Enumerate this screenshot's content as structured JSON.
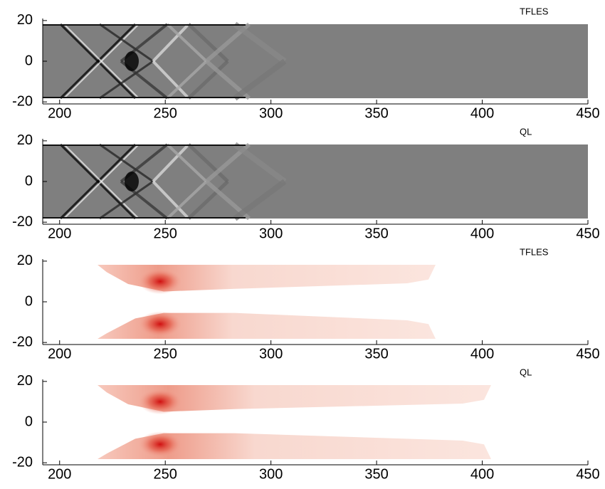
{
  "chart_data": [
    {
      "type": "image",
      "label": "TFLES",
      "colormap": "gray",
      "xlim": [
        192,
        450
      ],
      "ylim": [
        -21,
        21
      ],
      "xticks": [
        200,
        250,
        300,
        350,
        400,
        450
      ],
      "yticks": [
        -20,
        0,
        20
      ]
    },
    {
      "type": "image",
      "label": "QL",
      "colormap": "gray",
      "xlim": [
        192,
        450
      ],
      "ylim": [
        -21,
        21
      ],
      "xticks": [
        200,
        250,
        300,
        350,
        400,
        450
      ],
      "yticks": [
        -20,
        0,
        20
      ]
    },
    {
      "type": "image",
      "label": "TFLES",
      "colormap": "reds",
      "xlim": [
        192,
        450
      ],
      "ylim": [
        -21,
        21
      ],
      "xticks": [
        200,
        250,
        300,
        350,
        400,
        450
      ],
      "yticks": [
        -20,
        0,
        20
      ]
    },
    {
      "type": "image",
      "label": "QL",
      "colormap": "reds",
      "xlim": [
        192,
        450
      ],
      "ylim": [
        -21,
        21
      ],
      "xticks": [
        200,
        250,
        300,
        350,
        400,
        450
      ],
      "yticks": [
        -20,
        0,
        20
      ]
    }
  ]
}
